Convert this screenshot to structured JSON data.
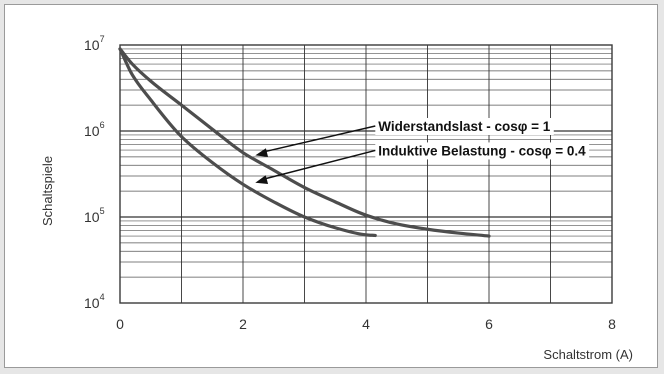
{
  "chart_data": {
    "type": "line",
    "title": "",
    "xlabel": "Schaltstrom (A)",
    "ylabel": "Schaltspiele",
    "xlim": [
      0,
      8
    ],
    "ylim": [
      10000,
      10000000
    ],
    "yscale": "log",
    "grid": true,
    "x_ticks": [
      "0",
      "2",
      "4",
      "6",
      "8"
    ],
    "y_ticks": [
      {
        "base": "10",
        "exp": "4"
      },
      {
        "base": "10",
        "exp": "5"
      },
      {
        "base": "10",
        "exp": "6"
      },
      {
        "base": "10",
        "exp": "7"
      }
    ],
    "series": [
      {
        "name": "Widerstandslast - cosφ = 1",
        "x": [
          0,
          0.2,
          0.5,
          1,
          1.5,
          2,
          2.5,
          3,
          3.5,
          4,
          4.5,
          5,
          5.5,
          6
        ],
        "y": [
          9000000,
          6000000,
          3800000,
          2000000,
          1050000,
          560000,
          350000,
          220000,
          150000,
          105000,
          83000,
          72000,
          65000,
          60000
        ]
      },
      {
        "name": "Induktive Belastung - cosφ = 0.4",
        "x": [
          0,
          0.2,
          0.5,
          1,
          1.5,
          2,
          2.5,
          3,
          3.5,
          4,
          4.15
        ],
        "y": [
          9000000,
          4500000,
          2300000,
          860000,
          430000,
          240000,
          150000,
          100000,
          75000,
          62000,
          61000
        ]
      }
    ],
    "annotations": [
      {
        "text": "Widerstandslast - cosφ = 1",
        "x": 4.2,
        "y": 1000000,
        "arrow_to": {
          "x": 2.2,
          "y": 520000
        }
      },
      {
        "text": "Induktive Belastung - cosφ = 0.4",
        "x": 4.2,
        "y": 520000,
        "arrow_to": {
          "x": 2.2,
          "y": 250000
        }
      }
    ]
  }
}
